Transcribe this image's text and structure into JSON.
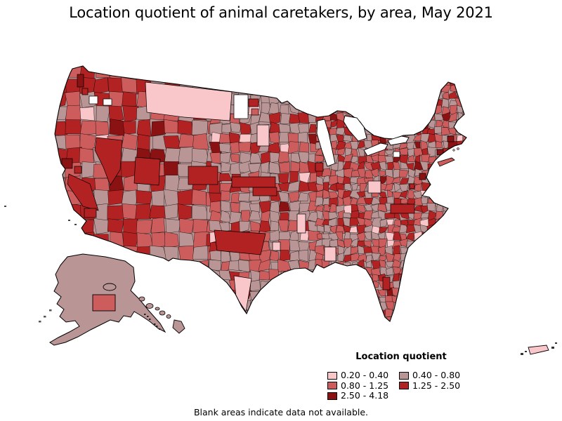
{
  "title": "Location quotient of animal caretakers, by area, May 2021",
  "footnote": "Blank areas indicate data not available.",
  "legend": {
    "title": "Location quotient",
    "items": [
      {
        "label": "0.20 - 0.40",
        "color": "#f9c6ca"
      },
      {
        "label": "0.40 - 0.80",
        "color": "#b99595"
      },
      {
        "label": "0.80 - 1.25",
        "color": "#cd5c5c"
      },
      {
        "label": "1.25 - 2.50",
        "color": "#b22222"
      },
      {
        "label": "2.50 - 4.18",
        "color": "#8b1212"
      }
    ]
  },
  "map": {
    "regions": [
      "Continental United States",
      "Alaska",
      "Hawaii",
      "Puerto Rico"
    ],
    "no_data_color": "#ffffff",
    "border_color": "#000000"
  },
  "chart_data": {
    "type": "choropleth-map",
    "title": "Location quotient of animal caretakers, by area, May 2021",
    "legend_title": "Location quotient",
    "bins": [
      {
        "range": [
          0.2,
          0.4
        ],
        "color": "#f9c6ca"
      },
      {
        "range": [
          0.4,
          0.8
        ],
        "color": "#b99595"
      },
      {
        "range": [
          0.8,
          1.25
        ],
        "color": "#cd5c5c"
      },
      {
        "range": [
          1.25,
          2.5
        ],
        "color": "#b22222"
      },
      {
        "range": [
          2.5,
          4.18
        ],
        "color": "#8b1212"
      }
    ],
    "value_range": [
      0.2,
      4.18
    ],
    "note": "Blank areas indicate data not available."
  }
}
